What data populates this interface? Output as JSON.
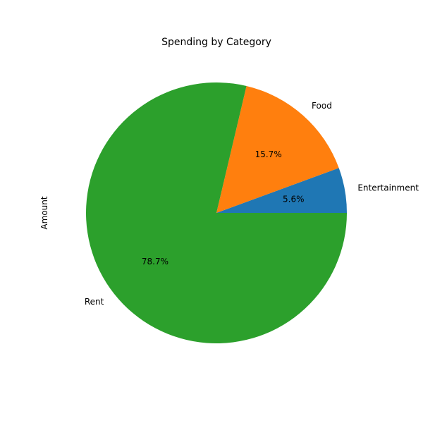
{
  "chart_data": {
    "type": "pie",
    "title": "Spending by Category",
    "ylabel": "Amount",
    "categories": [
      "Entertainment",
      "Food",
      "Rent"
    ],
    "values": [
      5.6,
      15.7,
      78.7
    ],
    "percent_labels": [
      "5.6%",
      "15.7%",
      "78.7%"
    ],
    "colors": [
      "#1f77b4",
      "#ff7f0e",
      "#2ca02c"
    ],
    "start_angle_deg": 0,
    "direction": "counterclockwise"
  }
}
